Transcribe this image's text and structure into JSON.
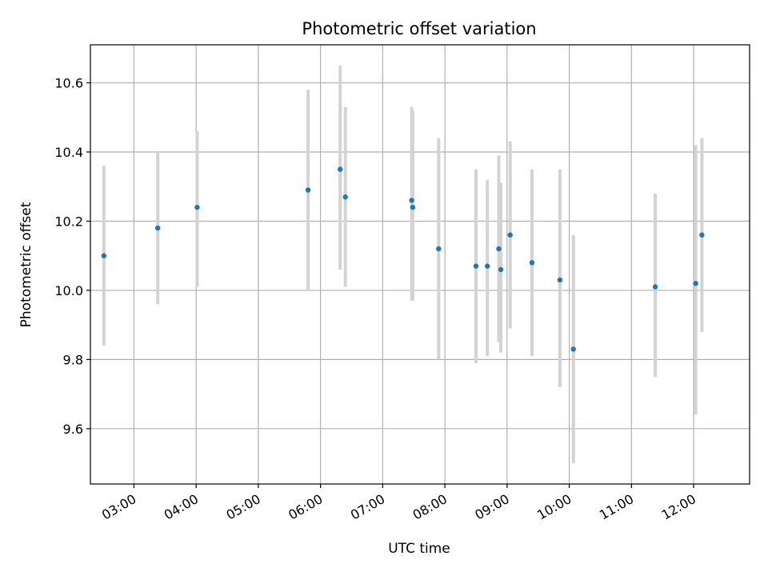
{
  "chart_data": {
    "type": "scatter",
    "title": "Photometric offset variation",
    "xlabel": "UTC time",
    "ylabel": "Photometric offset",
    "x_axis": "time",
    "xlim": [
      "02:18",
      "12:54"
    ],
    "ylim": [
      9.44,
      10.71
    ],
    "x_ticks": [
      "03:00",
      "04:00",
      "05:00",
      "06:00",
      "07:00",
      "08:00",
      "09:00",
      "10:00",
      "11:00",
      "12:00"
    ],
    "y_ticks": [
      9.6,
      9.8,
      10.0,
      10.2,
      10.4,
      10.6
    ],
    "y_tick_labels": [
      "9.6",
      "9.8",
      "10.0",
      "10.2",
      "10.4",
      "10.6"
    ],
    "grid": true,
    "colors": {
      "point": "#1f77b4",
      "errorbar": "#d3d3d3",
      "grid": "#b0b0b0"
    },
    "series": [
      {
        "points": [
          {
            "x": "02:31",
            "y": 10.1,
            "yerr_low": 9.84,
            "yerr_high": 10.36
          },
          {
            "x": "03:23",
            "y": 10.18,
            "yerr_low": 9.96,
            "yerr_high": 10.4
          },
          {
            "x": "04:01",
            "y": 10.24,
            "yerr_low": 10.01,
            "yerr_high": 10.46
          },
          {
            "x": "05:48",
            "y": 10.29,
            "yerr_low": 10.0,
            "yerr_high": 10.58
          },
          {
            "x": "06:19",
            "y": 10.35,
            "yerr_low": 10.06,
            "yerr_high": 10.65
          },
          {
            "x": "06:24",
            "y": 10.27,
            "yerr_low": 10.01,
            "yerr_high": 10.53
          },
          {
            "x": "07:28",
            "y": 10.26,
            "yerr_low": 9.97,
            "yerr_high": 10.53
          },
          {
            "x": "07:29",
            "y": 10.24,
            "yerr_low": 9.97,
            "yerr_high": 10.52
          },
          {
            "x": "07:54",
            "y": 10.12,
            "yerr_low": 9.8,
            "yerr_high": 10.44
          },
          {
            "x": "08:30",
            "y": 10.07,
            "yerr_low": 9.79,
            "yerr_high": 10.35
          },
          {
            "x": "08:41",
            "y": 10.07,
            "yerr_low": 9.81,
            "yerr_high": 10.32
          },
          {
            "x": "08:52",
            "y": 10.12,
            "yerr_low": 9.85,
            "yerr_high": 10.39
          },
          {
            "x": "08:54",
            "y": 10.06,
            "yerr_low": 9.82,
            "yerr_high": 10.31
          },
          {
            "x": "09:03",
            "y": 10.16,
            "yerr_low": 9.89,
            "yerr_high": 10.43
          },
          {
            "x": "09:24",
            "y": 10.08,
            "yerr_low": 9.81,
            "yerr_high": 10.35
          },
          {
            "x": "09:51",
            "y": 10.03,
            "yerr_low": 9.72,
            "yerr_high": 10.35
          },
          {
            "x": "10:04",
            "y": 9.83,
            "yerr_low": 9.5,
            "yerr_high": 10.16
          },
          {
            "x": "11:23",
            "y": 10.01,
            "yerr_low": 9.75,
            "yerr_high": 10.28
          },
          {
            "x": "12:02",
            "y": 10.02,
            "yerr_low": 9.64,
            "yerr_high": 10.42
          },
          {
            "x": "12:08",
            "y": 10.16,
            "yerr_low": 9.88,
            "yerr_high": 10.44
          }
        ]
      }
    ]
  }
}
